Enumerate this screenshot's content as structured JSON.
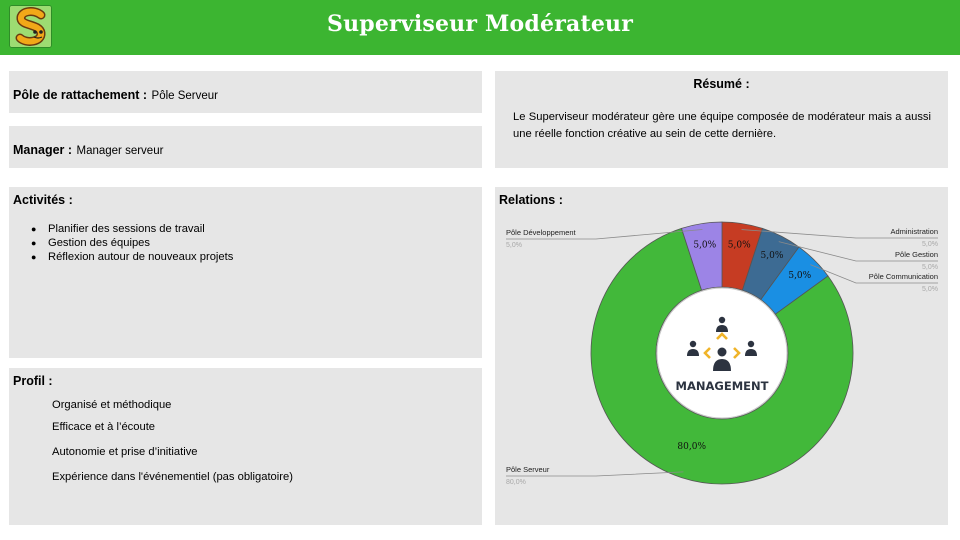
{
  "header": {
    "title": "Superviseur Modérateur",
    "logo_icon": "snake-s-logo-icon"
  },
  "pole": {
    "label": "Pôle de rattachement :",
    "value": "Pôle Serveur"
  },
  "manager": {
    "label": "Manager :",
    "value": "Manager serveur"
  },
  "resume": {
    "heading": "Résumé :",
    "text": "Le Superviseur modérateur gère une équipe composée de modérateur mais a aussi une réelle fonction créative au sein de cette dernière."
  },
  "activites": {
    "heading": "Activités :",
    "items": [
      "Planifier des sessions de travail",
      "Gestion des équipes",
      "Réflexion autour de nouveaux projets"
    ]
  },
  "profil": {
    "heading": "Profil :",
    "items": [
      "Organisé et méthodique",
      "Efficace et à l’écoute",
      "Autonomie et prise d’initiative",
      "Expérience dans l'événementiel (pas obligatoire)"
    ]
  },
  "relations": {
    "heading": "Relations :",
    "center_label": "MANAGEMENT",
    "center_icon": "management-people-icon"
  },
  "chart_data": {
    "type": "pie",
    "donut": true,
    "categories": [
      "Administration",
      "Pôle Gestion",
      "Pôle Communication",
      "Pôle Serveur",
      "Pôle Développement"
    ],
    "values": [
      5.0,
      5.0,
      5.0,
      80.0,
      5.0
    ],
    "value_labels": [
      "5,0%",
      "5,0%",
      "5,0%",
      "80,0%",
      "5,0%"
    ],
    "legend_values": [
      "5,0%",
      "5,0%",
      "5,0%",
      "80,0%",
      "5,0%"
    ],
    "colors": [
      "#c63c23",
      "#3d6b93",
      "#1a8fe3",
      "#42b83a",
      "#9c84e6"
    ],
    "start_angle_deg": 0,
    "direction": "clockwise"
  }
}
